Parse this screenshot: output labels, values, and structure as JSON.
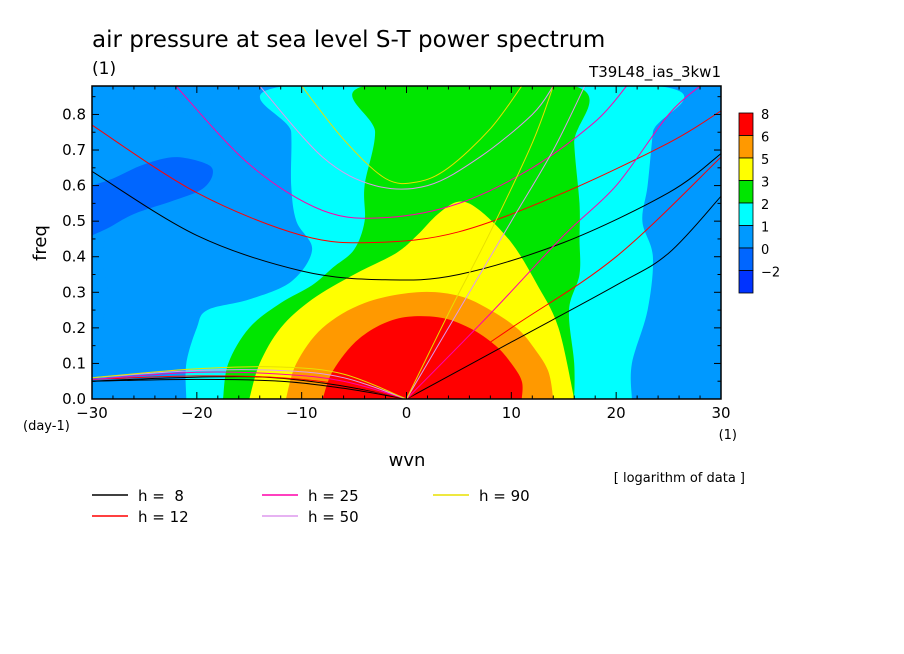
{
  "chart_data": {
    "type": "heatmap",
    "title": "air pressure at sea level S-T power spectrum",
    "title_unit": "(1)",
    "run_label": "T39L48_ias_3kw1",
    "xlabel": "wvn",
    "x_unit": "(1)",
    "ylabel": "freq",
    "y_unit": "(day-1)",
    "xlim": [
      -30,
      30
    ],
    "ylim": [
      0,
      0.88
    ],
    "xticks": [
      -30,
      -20,
      -10,
      0,
      10,
      20,
      30
    ],
    "yticks": [
      0.0,
      0.1,
      0.2,
      0.3,
      0.4,
      0.5,
      0.6,
      0.7,
      0.8
    ],
    "xtick_labels": [
      "−30",
      "−20",
      "−10",
      "0",
      "10",
      "20",
      "30"
    ],
    "ytick_labels": [
      "0.0",
      "0.1",
      "0.2",
      "0.3",
      "0.4",
      "0.5",
      "0.6",
      "0.7",
      "0.8"
    ],
    "note": "[ logarithm of data ]",
    "colorbar": {
      "labels": [
        "8",
        "6",
        "5",
        "3",
        "2",
        "1",
        "0",
        "−2"
      ],
      "colors": [
        "#ff0000",
        "#ff9900",
        "#ffff00",
        "#00e600",
        "#00ffff",
        "#0099ff",
        "#0066ff",
        "#0033ff"
      ]
    },
    "levels": [
      {
        "level": 6,
        "color": "#ff0000",
        "points": [
          [
            -8,
            0
          ],
          [
            -7,
            0.08
          ],
          [
            -4.5,
            0.17
          ],
          [
            -1,
            0.225
          ],
          [
            3,
            0.23
          ],
          [
            6,
            0.2
          ],
          [
            8.5,
            0.15
          ],
          [
            10,
            0.1
          ],
          [
            11,
            0.05
          ],
          [
            11,
            0
          ]
        ]
      },
      {
        "level": 5,
        "color": "#ff9900",
        "points": [
          [
            -11.5,
            0
          ],
          [
            -10.5,
            0.1
          ],
          [
            -8,
            0.2
          ],
          [
            -4,
            0.27
          ],
          [
            1,
            0.3
          ],
          [
            5,
            0.29
          ],
          [
            8,
            0.25
          ],
          [
            10.5,
            0.2
          ],
          [
            12,
            0.15
          ],
          [
            13.5,
            0.08
          ],
          [
            14,
            0
          ]
        ]
      },
      {
        "level": 3,
        "color": "#ffff00",
        "points": [
          [
            -15,
            0
          ],
          [
            -14,
            0.1
          ],
          [
            -12,
            0.2
          ],
          [
            -9,
            0.28
          ],
          [
            -5,
            0.35
          ],
          [
            -1,
            0.41
          ],
          [
            1,
            0.46
          ],
          [
            3,
            0.52
          ],
          [
            5,
            0.555
          ],
          [
            7,
            0.53
          ],
          [
            10,
            0.44
          ],
          [
            12.5,
            0.32
          ],
          [
            14.5,
            0.2
          ],
          [
            16,
            0
          ]
        ]
      },
      {
        "level": 2,
        "color": "#00e600",
        "points": [
          [
            -17.5,
            0
          ],
          [
            -17,
            0.1
          ],
          [
            -15,
            0.2
          ],
          [
            -12,
            0.27
          ],
          [
            -9,
            0.32
          ],
          [
            -7,
            0.37
          ],
          [
            -5,
            0.42
          ],
          [
            -4,
            0.5
          ],
          [
            -4,
            0.6
          ],
          [
            -3,
            0.75
          ],
          [
            -4,
            0.88
          ],
          [
            16,
            0.88
          ],
          [
            16,
            0.72
          ],
          [
            16.5,
            0.55
          ],
          [
            16.5,
            0.45
          ],
          [
            16.5,
            0.35
          ],
          [
            15.5,
            0.25
          ],
          [
            16,
            0.1
          ],
          [
            16,
            0
          ]
        ]
      },
      {
        "level": 1,
        "color": "#00ffff",
        "points": [
          [
            -21,
            0
          ],
          [
            -21,
            0.1
          ],
          [
            -20,
            0.2
          ],
          [
            -19,
            0.25
          ],
          [
            -15,
            0.28
          ],
          [
            -11,
            0.33
          ],
          [
            -9,
            0.42
          ],
          [
            -10.5,
            0.5
          ],
          [
            -11,
            0.6
          ],
          [
            -11,
            0.75
          ],
          [
            -11.5,
            0.88
          ],
          [
            24,
            0.88
          ],
          [
            23.5,
            0.75
          ],
          [
            23,
            0.6
          ],
          [
            22.5,
            0.5
          ],
          [
            23.5,
            0.4
          ],
          [
            23,
            0.25
          ],
          [
            21.5,
            0.1
          ],
          [
            21.5,
            0
          ]
        ]
      },
      {
        "level": 0,
        "color": "#0099ff",
        "points": [
          [
            -29,
            0
          ],
          [
            -29,
            0.1
          ],
          [
            -29,
            0.2
          ],
          [
            -28.5,
            0.3
          ],
          [
            -29,
            0.4
          ],
          [
            -28,
            0.5
          ],
          [
            -25,
            0.55
          ],
          [
            -22,
            0.6
          ],
          [
            -19,
            0.65
          ],
          [
            -19,
            0.75
          ],
          [
            -21,
            0.8
          ],
          [
            -23,
            0.88
          ],
          [
            30,
            0.88
          ],
          [
            30,
            0.8
          ],
          [
            30,
            0.6
          ],
          [
            30,
            0.4
          ],
          [
            30,
            0.2
          ],
          [
            30,
            0.05
          ],
          [
            30,
            0
          ]
        ]
      },
      {
        "level": -2,
        "color": "#0066ff",
        "points": [
          [
            -30,
            0.6
          ],
          [
            -28,
            0.62
          ],
          [
            -25,
            0.66
          ],
          [
            -22,
            0.68
          ],
          [
            -19,
            0.66
          ],
          [
            -18.5,
            0.63
          ],
          [
            -19.5,
            0.59
          ],
          [
            -22,
            0.56
          ],
          [
            -26,
            0.52
          ],
          [
            -28.5,
            0.48
          ],
          [
            -30,
            0.46
          ]
        ]
      }
    ],
    "series": [
      {
        "name": "h =  8",
        "color": "#000000",
        "branches": [
          {
            "kind": "ig_east",
            "points": [
              [
                0,
                0
              ],
              [
                10,
                0.16
              ],
              [
                20,
                0.32
              ],
              [
                25,
                0.41
              ],
              [
                30,
                0.57
              ]
            ]
          },
          {
            "kind": "ig_west",
            "points": [
              [
                -30,
                0.64
              ],
              [
                -20,
                0.46
              ],
              [
                -10,
                0.36
              ],
              [
                -2,
                0.335
              ],
              [
                5,
                0.35
              ],
              [
                15,
                0.44
              ],
              [
                25,
                0.58
              ],
              [
                30,
                0.69
              ]
            ]
          },
          {
            "kind": "rossby",
            "points": [
              [
                -30,
                0.05
              ],
              [
                -20,
                0.055
              ],
              [
                -12,
                0.05
              ],
              [
                -6,
                0.03
              ],
              [
                0,
                0
              ]
            ]
          },
          {
            "kind": "rossby2",
            "points": [
              [
                -30,
                0.05
              ],
              [
                -22,
                0.06
              ],
              [
                -14,
                0.062
              ],
              [
                -8,
                0.045
              ],
              [
                -3,
                0.02
              ],
              [
                0,
                0
              ]
            ]
          }
        ]
      },
      {
        "name": "h = 12",
        "color": "#ff0000",
        "branches": [
          {
            "kind": "ig_east",
            "points": [
              [
                0,
                0
              ],
              [
                10,
                0.2
              ],
              [
                20,
                0.4
              ],
              [
                30,
                0.68
              ]
            ]
          },
          {
            "kind": "ig_west",
            "points": [
              [
                -30,
                0.77
              ],
              [
                -20,
                0.58
              ],
              [
                -10,
                0.46
              ],
              [
                -3,
                0.44
              ],
              [
                5,
                0.47
              ],
              [
                15,
                0.58
              ],
              [
                25,
                0.72
              ],
              [
                30,
                0.81
              ]
            ]
          },
          {
            "kind": "rossby",
            "points": [
              [
                -30,
                0.055
              ],
              [
                -20,
                0.065
              ],
              [
                -12,
                0.06
              ],
              [
                -6,
                0.04
              ],
              [
                0,
                0
              ]
            ]
          }
        ]
      },
      {
        "name": "h = 25",
        "color": "#ff00aa",
        "branches": [
          {
            "kind": "ig_east",
            "points": [
              [
                0,
                0
              ],
              [
                8,
                0.24
              ],
              [
                15,
                0.46
              ],
              [
                20,
                0.6
              ],
              [
                25,
                0.8
              ],
              [
                28,
                0.88
              ]
            ]
          },
          {
            "kind": "ig_west",
            "points": [
              [
                -22,
                0.88
              ],
              [
                -15,
                0.66
              ],
              [
                -8,
                0.53
              ],
              [
                -2,
                0.51
              ],
              [
                5,
                0.55
              ],
              [
                12,
                0.65
              ],
              [
                18,
                0.78
              ],
              [
                21,
                0.88
              ]
            ]
          },
          {
            "kind": "rossby",
            "points": [
              [
                -30,
                0.055
              ],
              [
                -20,
                0.075
              ],
              [
                -12,
                0.07
              ],
              [
                -6,
                0.05
              ],
              [
                0,
                0
              ]
            ]
          }
        ]
      },
      {
        "name": "h = 50",
        "color": "#dd99ee",
        "branches": [
          {
            "kind": "ig_east",
            "points": [
              [
                0,
                0
              ],
              [
                5,
                0.25
              ],
              [
                10,
                0.5
              ],
              [
                14,
                0.7
              ],
              [
                17,
                0.88
              ]
            ]
          },
          {
            "kind": "ig_west",
            "points": [
              [
                -14,
                0.88
              ],
              [
                -8,
                0.68
              ],
              [
                -3,
                0.6
              ],
              [
                2,
                0.6
              ],
              [
                7,
                0.68
              ],
              [
                12,
                0.8
              ],
              [
                14,
                0.88
              ]
            ]
          },
          {
            "kind": "rossby",
            "points": [
              [
                -30,
                0.06
              ],
              [
                -20,
                0.08
              ],
              [
                -12,
                0.08
              ],
              [
                -6,
                0.06
              ],
              [
                0,
                0
              ]
            ]
          }
        ]
      },
      {
        "name": "h = 90",
        "color": "#e8e000",
        "branches": [
          {
            "kind": "ig_east",
            "points": [
              [
                0,
                0
              ],
              [
                4,
                0.24
              ],
              [
                8,
                0.47
              ],
              [
                12,
                0.72
              ],
              [
                14,
                0.88
              ]
            ]
          },
          {
            "kind": "ig_west",
            "points": [
              [
                -10,
                0.88
              ],
              [
                -6,
                0.73
              ],
              [
                -2,
                0.62
              ],
              [
                1,
                0.61
              ],
              [
                4,
                0.65
              ],
              [
                8,
                0.76
              ],
              [
                11,
                0.88
              ]
            ]
          },
          {
            "kind": "rossby",
            "points": [
              [
                -30,
                0.06
              ],
              [
                -20,
                0.085
              ],
              [
                -12,
                0.09
              ],
              [
                -6,
                0.07
              ],
              [
                0,
                0
              ]
            ]
          }
        ]
      }
    ],
    "legend_placement": "bottom-left"
  }
}
